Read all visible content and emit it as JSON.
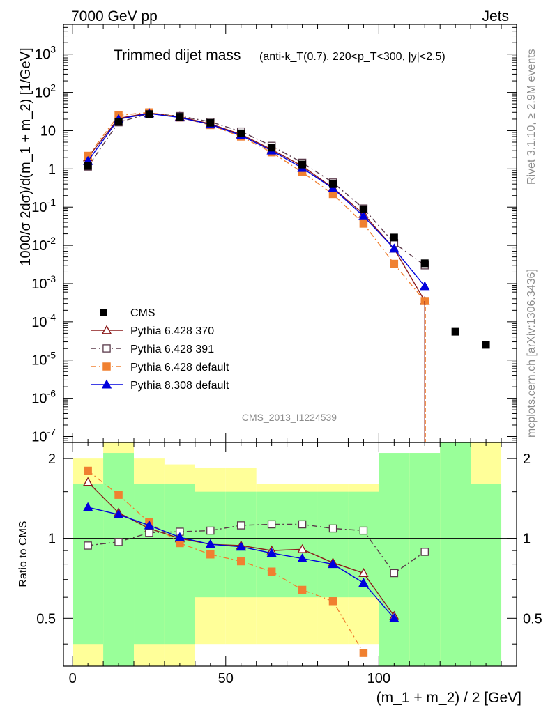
{
  "header": {
    "energy_label": "7000 GeV pp",
    "category_label": "Jets"
  },
  "side_labels": {
    "rivet": "Rivet 3.1.10, ≥ 2.9M events",
    "mcplots": "mcplots.cern.ch [arXiv:1306.3436]"
  },
  "analysis_label": "CMS_2013_I1224539",
  "colors": {
    "cms": "#000000",
    "p370": "#8b1a1a",
    "p391": "#5a3a4a",
    "pdefault": "#f08030",
    "p8": "#0000dd",
    "band_inner": "#99ff99",
    "band_outer": "#ffff99"
  },
  "chart_data": {
    "type": "scatter",
    "title": "Trimmed dijet mass",
    "subtitle": "(anti-k_T(0.7), 220<p_T<300, |y|<2.5)",
    "xlabel": "(m_1 + m_2) / 2 [GeV]",
    "ylabel": "1000/σ 2dσ)/d(m_1 + m_2) [1/GeV]",
    "ratio_ylabel": "Ratio to CMS",
    "xlim": [
      -3,
      145
    ],
    "ylim": [
      7e-08,
      6000
    ],
    "ylog": true,
    "ratio_ylim": [
      0.33,
      2.3
    ],
    "x_ticks": [
      0,
      50,
      100
    ],
    "y_tick_labels": [
      "10^-7",
      "10^-6",
      "10^-5",
      "10^-4",
      "10^-3",
      "10^-2",
      "10^-1",
      "1",
      "10",
      "10^2",
      "10^3"
    ],
    "ratio_ticks": [
      "0.5",
      "1",
      "2"
    ],
    "legend_position": "lower-left",
    "bins": [
      [
        0,
        10
      ],
      [
        10,
        20
      ],
      [
        20,
        30
      ],
      [
        30,
        40
      ],
      [
        40,
        50
      ],
      [
        50,
        60
      ],
      [
        60,
        70
      ],
      [
        70,
        80
      ],
      [
        80,
        90
      ],
      [
        90,
        100
      ],
      [
        100,
        110
      ],
      [
        110,
        120
      ],
      [
        120,
        130
      ],
      [
        130,
        140
      ]
    ],
    "cms": {
      "name": "CMS",
      "x": [
        5,
        15,
        25,
        35,
        45,
        55,
        65,
        75,
        85,
        95,
        105,
        115,
        125,
        135
      ],
      "y": [
        1.2,
        17,
        27,
        23,
        16,
        8.5,
        3.6,
        1.3,
        0.4,
        0.088,
        0.016,
        0.0034,
        5.5e-05,
        2.5e-05
      ]
    },
    "series": [
      {
        "name": "Pythia 6.428 370",
        "style": "open-triangle-solid",
        "x": [
          5,
          15,
          25,
          35,
          45,
          55,
          65,
          75,
          85,
          95,
          105,
          115
        ],
        "y": [
          2.0,
          21,
          29,
          23,
          15,
          8.0,
          3.2,
          1.18,
          0.32,
          0.066,
          0.0082,
          0.00035
        ],
        "ratio": [
          1.63,
          1.25,
          1.09,
          1.0,
          0.95,
          0.94,
          0.9,
          0.91,
          0.81,
          0.74,
          0.51,
          null
        ]
      },
      {
        "name": "Pythia 6.428 391",
        "style": "open-square-dashdot",
        "x": [
          5,
          15,
          25,
          35,
          45,
          55,
          65,
          75,
          85,
          95,
          105,
          115
        ],
        "y": [
          1.15,
          16.5,
          28,
          24,
          17,
          9.5,
          4.0,
          1.45,
          0.44,
          0.092,
          0.0115,
          0.003
        ],
        "ratio": [
          0.94,
          0.97,
          1.05,
          1.06,
          1.07,
          1.12,
          1.13,
          1.13,
          1.09,
          1.07,
          0.74,
          0.89
        ]
      },
      {
        "name": "Pythia 6.428 default",
        "style": "filled-square-dashdot",
        "x": [
          5,
          15,
          25,
          35,
          45,
          55,
          65,
          75,
          85,
          95,
          105,
          115
        ],
        "y": [
          2.2,
          25,
          30,
          22,
          14,
          7.0,
          2.7,
          0.82,
          0.22,
          0.037,
          0.0033,
          0.00035
        ],
        "ratio": [
          1.8,
          1.46,
          1.15,
          0.96,
          0.87,
          0.82,
          0.75,
          0.64,
          0.58,
          0.37,
          null,
          null
        ]
      },
      {
        "name": "Pythia 8.308 default",
        "style": "filled-triangle-solid",
        "x": [
          5,
          15,
          25,
          35,
          45,
          55,
          65,
          75,
          85,
          95,
          105,
          115
        ],
        "y": [
          1.6,
          20,
          28,
          22,
          14.5,
          7.5,
          3.0,
          1.05,
          0.31,
          0.058,
          0.0082,
          0.00085
        ],
        "ratio": [
          1.31,
          1.23,
          1.12,
          1.01,
          0.95,
          0.93,
          0.88,
          0.84,
          0.8,
          0.68,
          0.5,
          null
        ]
      }
    ],
    "ratio_band": {
      "inner": [
        [
          0.4,
          1.6
        ],
        [
          0.2,
          2.1
        ],
        [
          0.4,
          1.6
        ],
        [
          0.4,
          1.6
        ],
        [
          0.6,
          1.5
        ],
        [
          0.6,
          1.5
        ],
        [
          0.6,
          1.5
        ],
        [
          0.6,
          1.5
        ],
        [
          0.6,
          1.5
        ],
        [
          0.6,
          1.5
        ],
        [
          0.2,
          2.1
        ],
        [
          0.2,
          2.1
        ],
        [
          0.2,
          2.4
        ],
        [
          0.2,
          1.6
        ]
      ],
      "outer": [
        [
          0.2,
          2.0
        ],
        [
          0.2,
          2.4
        ],
        [
          0.2,
          2.0
        ],
        [
          0.2,
          1.9
        ],
        [
          0.4,
          1.85
        ],
        [
          0.4,
          1.85
        ],
        [
          0.4,
          1.6
        ],
        [
          0.4,
          1.6
        ],
        [
          0.4,
          1.6
        ],
        [
          0.4,
          1.6
        ],
        [
          0.2,
          1.7
        ],
        [
          0.2,
          2.1
        ],
        [
          0.2,
          2.4
        ],
        [
          0.2,
          2.4
        ]
      ]
    }
  }
}
